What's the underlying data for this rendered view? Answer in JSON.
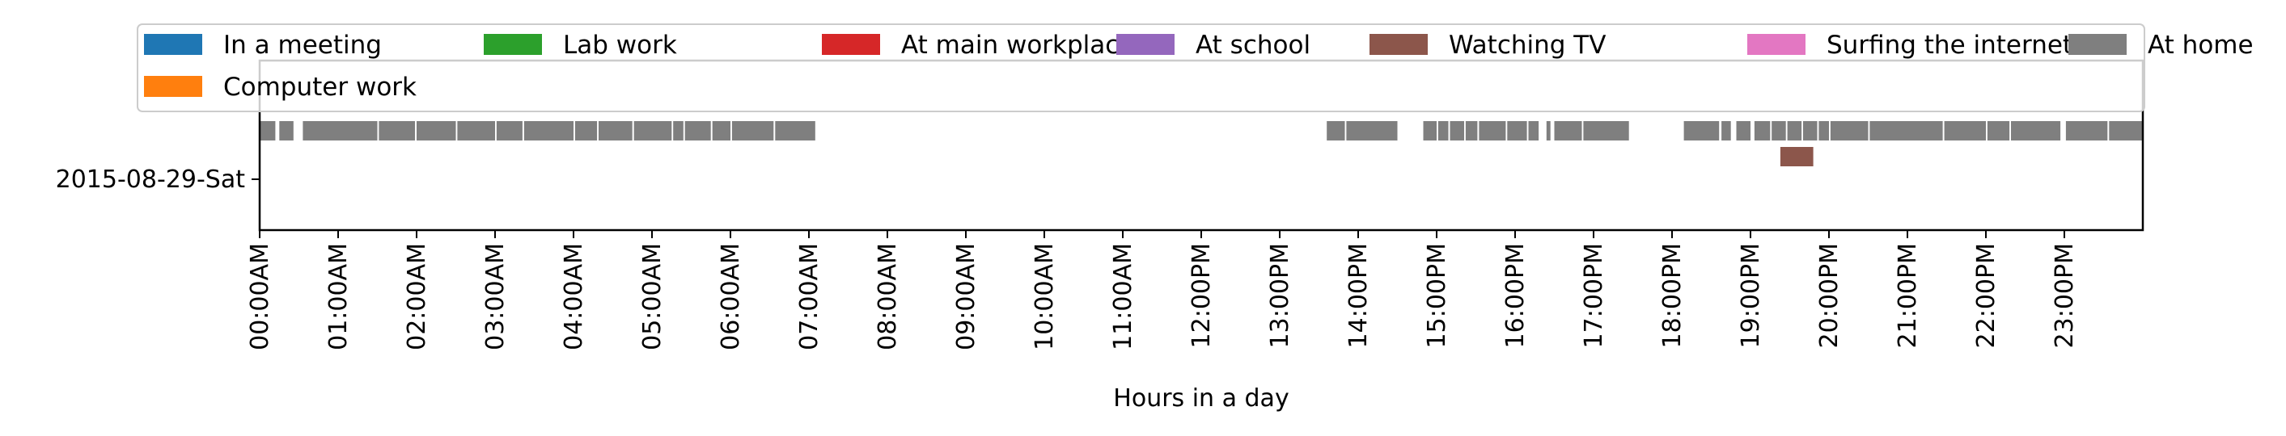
{
  "chart_data": {
    "type": "timeline",
    "title": "",
    "xlabel": "Hours in a day",
    "ylabel": "",
    "x_unit": "hours",
    "xlim": [
      0,
      24
    ],
    "x_ticks": [
      0,
      1,
      2,
      3,
      4,
      5,
      6,
      7,
      8,
      9,
      10,
      11,
      12,
      13,
      14,
      15,
      16,
      17,
      18,
      19,
      20,
      21,
      22,
      23
    ],
    "x_tick_labels": [
      "00:00AM",
      "01:00AM",
      "02:00AM",
      "03:00AM",
      "04:00AM",
      "05:00AM",
      "06:00AM",
      "07:00AM",
      "08:00AM",
      "09:00AM",
      "10:00AM",
      "11:00AM",
      "12:00PM",
      "13:00PM",
      "14:00PM",
      "15:00PM",
      "16:00PM",
      "17:00PM",
      "18:00PM",
      "19:00PM",
      "20:00PM",
      "21:00PM",
      "22:00PM",
      "23:00PM"
    ],
    "y_categories": [
      "2015-08-29-Sat"
    ],
    "legend_position": "top",
    "legend_columns": 7,
    "grid": false,
    "activities": [
      {
        "name": "In a meeting",
        "color": "#1f77b4"
      },
      {
        "name": "Lab work",
        "color": "#2ca02c"
      },
      {
        "name": "At main workplace",
        "color": "#d62728"
      },
      {
        "name": "At school",
        "color": "#9467bd"
      },
      {
        "name": "Watching TV",
        "color": "#8c564b"
      },
      {
        "name": "Surfing the internet",
        "color": "#e377c2"
      },
      {
        "name": "At home",
        "color": "#7f7f7f"
      },
      {
        "name": "Computer work",
        "color": "#ff7f0e"
      }
    ],
    "series": [
      {
        "name": "At home",
        "day": "2015-08-29-Sat",
        "intervals": [
          [
            0.0,
            0.2
          ],
          [
            0.25,
            0.43
          ],
          [
            0.55,
            1.5
          ],
          [
            1.52,
            1.98
          ],
          [
            2.0,
            2.5
          ],
          [
            2.52,
            3.0
          ],
          [
            3.02,
            3.35
          ],
          [
            3.37,
            4.0
          ],
          [
            4.02,
            4.3
          ],
          [
            4.32,
            4.75
          ],
          [
            4.77,
            5.25
          ],
          [
            5.27,
            5.4
          ],
          [
            5.42,
            5.75
          ],
          [
            5.77,
            6.0
          ],
          [
            6.02,
            6.55
          ],
          [
            6.57,
            7.08
          ],
          [
            13.6,
            13.83
          ],
          [
            13.85,
            14.5
          ],
          [
            14.83,
            15.0
          ],
          [
            15.02,
            15.15
          ],
          [
            15.17,
            15.35
          ],
          [
            15.37,
            15.52
          ],
          [
            15.54,
            15.88
          ],
          [
            15.9,
            16.15
          ],
          [
            16.17,
            16.3
          ],
          [
            16.4,
            16.45
          ],
          [
            16.5,
            16.85
          ],
          [
            16.87,
            17.45
          ],
          [
            18.15,
            18.6
          ],
          [
            18.63,
            18.75
          ],
          [
            18.82,
            19.0
          ],
          [
            19.05,
            19.25
          ],
          [
            19.27,
            19.45
          ],
          [
            19.47,
            19.65
          ],
          [
            19.67,
            19.85
          ],
          [
            19.87,
            20.0
          ],
          [
            20.02,
            20.5
          ],
          [
            20.52,
            21.45
          ],
          [
            21.47,
            22.0
          ],
          [
            22.02,
            22.3
          ],
          [
            22.32,
            22.95
          ],
          [
            23.02,
            23.55
          ],
          [
            23.57,
            24.0
          ]
        ]
      },
      {
        "name": "Watching TV",
        "day": "2015-08-29-Sat",
        "intervals": [
          [
            19.38,
            19.8
          ]
        ]
      }
    ]
  }
}
